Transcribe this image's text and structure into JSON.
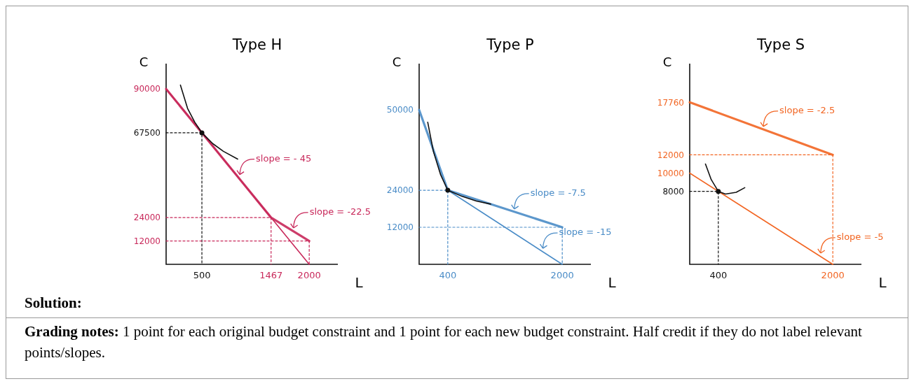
{
  "chart_data": [
    {
      "type": "line",
      "title": "Type H",
      "xlabel": "L",
      "ylabel": "C",
      "xlim": [
        0,
        2400
      ],
      "ylim": [
        0,
        103000
      ],
      "xticks": [
        500,
        1467,
        2000
      ],
      "yticks": [
        12000,
        24000,
        67500,
        90000
      ],
      "series": [
        {
          "color": "#c8285a",
          "x": [
            0,
            1467,
            2000
          ],
          "values": [
            90000,
            24000,
            12000
          ]
        },
        {
          "color": "#c8285a",
          "x": [
            0,
            2000
          ],
          "values": [
            90000,
            0
          ]
        },
        {
          "color": "#111111",
          "x": [
            200,
            300,
            400,
            500,
            650,
            800,
            1000
          ],
          "values": [
            92000,
            80000,
            73000,
            67500,
            62000,
            58000,
            54000
          ]
        },
        {
          "color": "#111111",
          "line_style": "dashed",
          "x": [
            0,
            500,
            500
          ],
          "values": [
            67500,
            67500,
            0
          ]
        },
        {
          "color": "#c8285a",
          "line_style": "dashed",
          "x": [
            0,
            1467,
            1467
          ],
          "values": [
            24000,
            24000,
            0
          ]
        },
        {
          "color": "#c8285a",
          "line_style": "dashed",
          "x": [
            0,
            2000,
            2000
          ],
          "values": [
            12000,
            12000,
            0
          ]
        },
        {
          "type": "scatter",
          "color": "#111111",
          "marker": "circle",
          "x": [
            500
          ],
          "values": [
            67500
          ]
        }
      ],
      "annotations": [
        {
          "text": "slope = - 45",
          "x": 1000,
          "y": 45000
        },
        {
          "text": "slope = -22.5",
          "x": 1750,
          "y": 17600
        }
      ]
    },
    {
      "type": "line",
      "title": "Type P",
      "xlabel": "L",
      "ylabel": "C",
      "xlim": [
        0,
        2400
      ],
      "ylim": [
        0,
        65000
      ],
      "xticks": [
        400,
        2000
      ],
      "yticks": [
        12000,
        24000,
        50000
      ],
      "series": [
        {
          "color": "#4a8cc7",
          "x": [
            0,
            400,
            2000
          ],
          "values": [
            50000,
            24000,
            12000
          ]
        },
        {
          "color": "#4a8cc7",
          "x": [
            400,
            2000
          ],
          "values": [
            24000,
            0
          ]
        },
        {
          "color": "#111111",
          "x": [
            120,
            200,
            300,
            400,
            600,
            800,
            1000
          ],
          "values": [
            46000,
            36500,
            29000,
            24000,
            22000,
            20500,
            19500
          ]
        },
        {
          "color": "#4a8cc7",
          "line_style": "dashed",
          "x": [
            0,
            400,
            400
          ],
          "values": [
            24000,
            24000,
            0
          ]
        },
        {
          "color": "#4a8cc7",
          "line_style": "dashed",
          "x": [
            0,
            2000,
            2000
          ],
          "values": [
            12000,
            12000,
            0
          ]
        },
        {
          "type": "scatter",
          "color": "#111111",
          "marker": "circle",
          "x": [
            400
          ],
          "values": [
            24000
          ]
        }
      ],
      "annotations": [
        {
          "text": "slope = -7.5",
          "x": 1300,
          "y": 17250
        },
        {
          "text": "slope = -15",
          "x": 1700,
          "y": 4500
        }
      ]
    },
    {
      "type": "line",
      "title": "Type S",
      "xlabel": "L",
      "ylabel": "C",
      "xlim": [
        0,
        2400
      ],
      "ylim": [
        0,
        22000
      ],
      "xticks": [
        400,
        2000
      ],
      "yticks": [
        8000,
        10000,
        12000,
        17760
      ],
      "series": [
        {
          "color": "#f26522",
          "x": [
            0,
            2000
          ],
          "values": [
            17760,
            12000
          ]
        },
        {
          "color": "#f26522",
          "x": [
            0,
            2000
          ],
          "values": [
            10000,
            0
          ]
        },
        {
          "color": "#111111",
          "x": [
            220,
            300,
            400,
            500,
            650,
            770
          ],
          "values": [
            11000,
            9300,
            8000,
            7700,
            7900,
            8400
          ]
        },
        {
          "color": "#f26522",
          "line_style": "dashed",
          "x": [
            0,
            2000,
            2000
          ],
          "values": [
            12000,
            12000,
            0
          ]
        },
        {
          "color": "#111111",
          "line_style": "dashed",
          "x": [
            0,
            400,
            400
          ],
          "values": [
            8000,
            8000,
            0
          ]
        },
        {
          "type": "scatter",
          "color": "#111111",
          "marker": "circle",
          "x": [
            400
          ],
          "values": [
            8000
          ]
        }
      ],
      "annotations": [
        {
          "text": "slope = -2.5",
          "x": 1000,
          "y": 14880
        },
        {
          "text": "slope = -5",
          "x": 1800,
          "y": 1000
        },
        "Solution:",
        "Grading notes: 1 point for each original budget constraint and 1 point for each new budget constraint.  Half credit if they do not label relevant points/slopes."
      ]
    }
  ]
}
